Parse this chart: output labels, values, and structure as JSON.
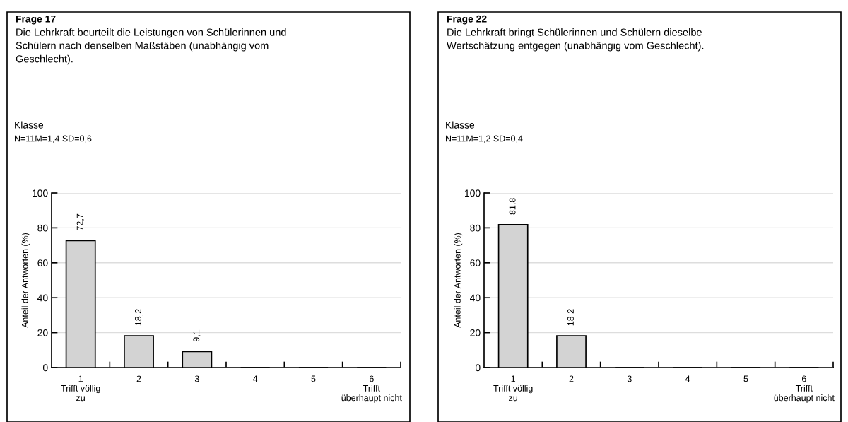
{
  "chart_data": [
    {
      "type": "bar",
      "title": "Frage 17",
      "subtitle": "Die Lehrkraft beurteilt die Leistungen von Schülerinnen und\nSchülern nach denselben Maßstäben (unabhängig vom\nGeschlecht).",
      "annotations": [
        "Klasse",
        "N=11M=1,4 SD=0,6"
      ],
      "ylabel": "Anteil der Antworten (%)",
      "categories": [
        "1\nTrifft völlig\nzu",
        "2",
        "3",
        "4",
        "5",
        "6\nTrifft\nüberhaupt nicht"
      ],
      "values": [
        72.7,
        18.2,
        9.1,
        0,
        0,
        0
      ],
      "value_labels": [
        "72,7",
        "18,2",
        "9,1",
        null,
        null,
        null
      ],
      "color": "#d3d3d3",
      "ylim": [
        0,
        100
      ],
      "yticks": [
        0,
        20,
        40,
        60,
        80,
        100
      ],
      "grid": "y"
    },
    {
      "type": "bar",
      "title": "Frage 22",
      "subtitle": "Die Lehrkraft bringt Schülerinnen und Schülern dieselbe\nWertschätzung entgegen (unabhängig vom Geschlecht).",
      "annotations": [
        "Klasse",
        "N=11M=1,2 SD=0,4"
      ],
      "ylabel": "Anteil der Antworten (%)",
      "categories": [
        "1\nTrifft völlig\nzu",
        "2",
        "3",
        "4",
        "5",
        "6\nTrifft\nüberhaupt nicht"
      ],
      "values": [
        81.8,
        18.2,
        0,
        0,
        0,
        0
      ],
      "value_labels": [
        "81,8",
        "18,2",
        null,
        null,
        null,
        null
      ],
      "color": "#d3d3d3",
      "ylim": [
        0,
        100
      ],
      "yticks": [
        0,
        20,
        40,
        60,
        80,
        100
      ],
      "grid": "y"
    }
  ]
}
